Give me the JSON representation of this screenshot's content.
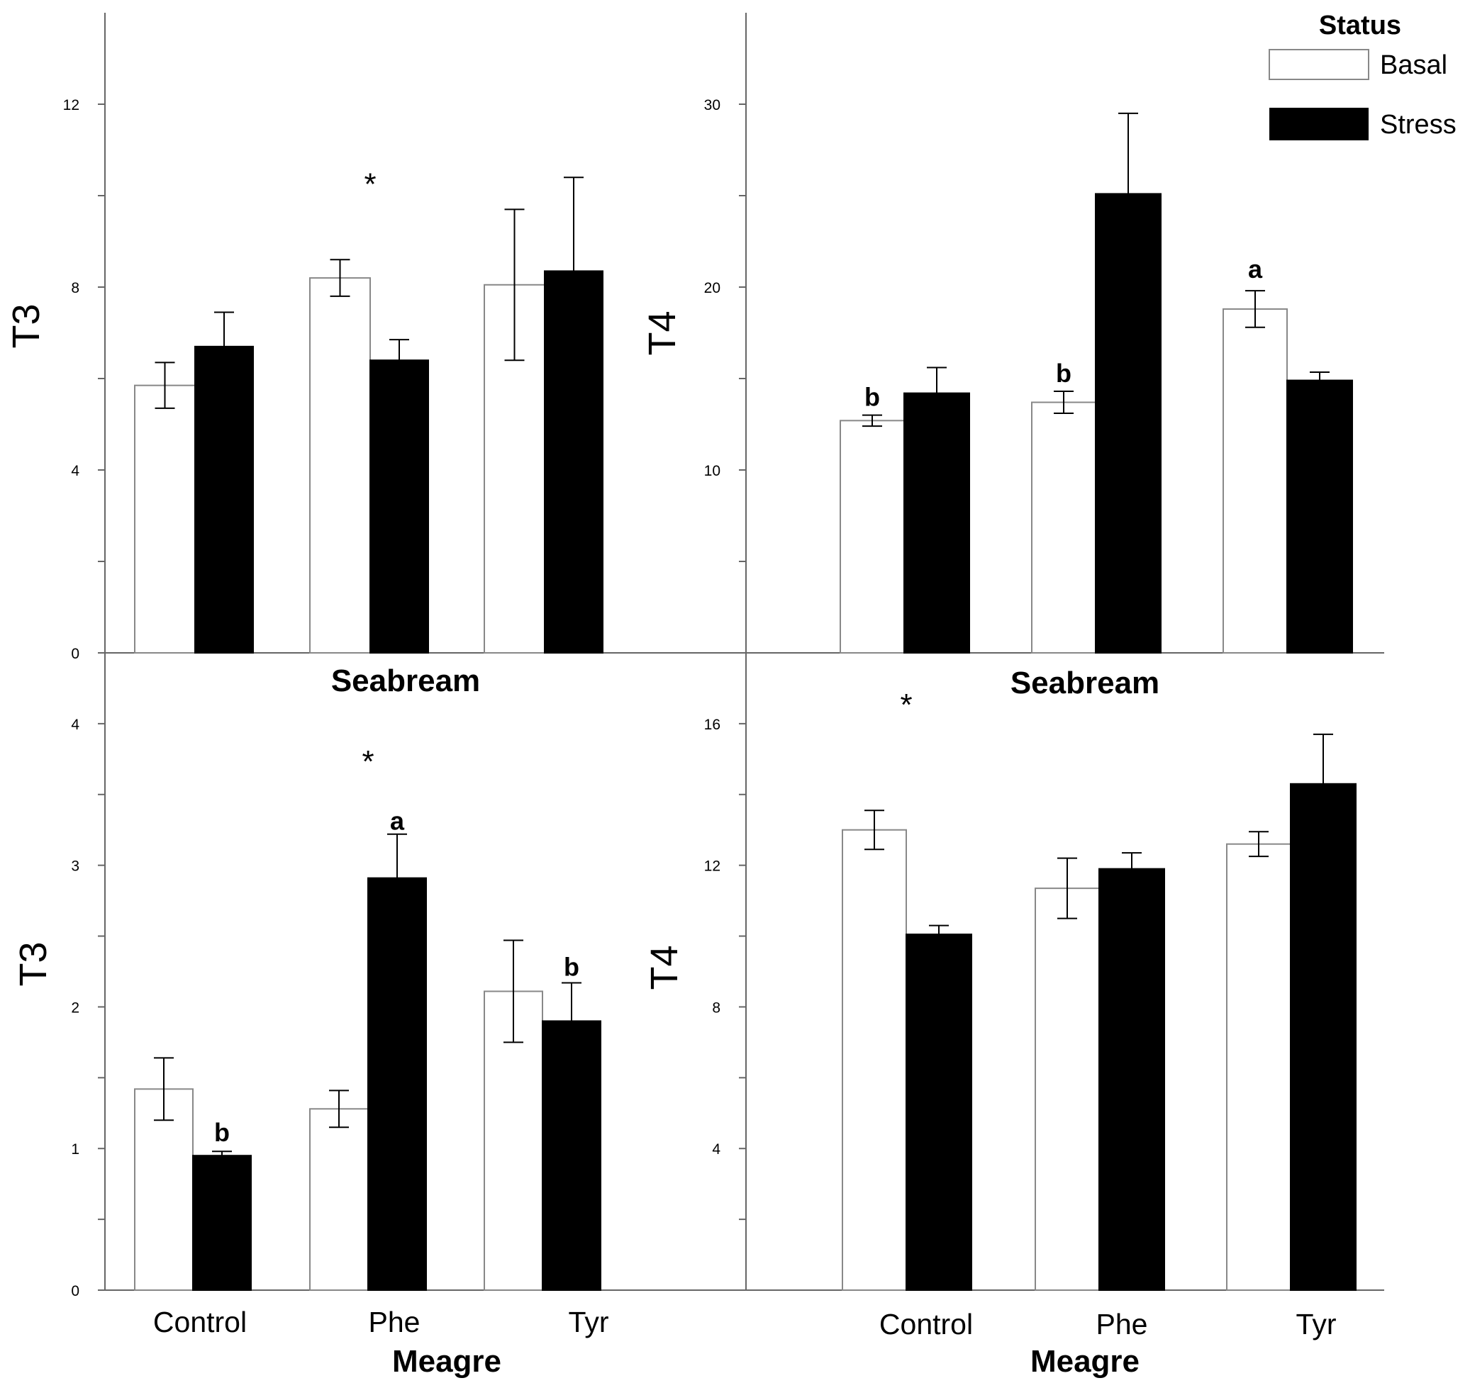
{
  "legend": {
    "title": "Status",
    "entries": [
      {
        "name": "Basal",
        "fill": "#ffffff"
      },
      {
        "name": "Stress",
        "fill": "#000000"
      }
    ]
  },
  "colors": {
    "basal": "#ffffff",
    "stress": "#000000",
    "axis": "#666666",
    "basal_stroke": "#888888"
  },
  "chart_data": [
    {
      "id": "seabream-t3",
      "type": "bar",
      "title": "Seabream",
      "ylabel": "T3",
      "xlabel": "",
      "categories": [
        "Control",
        "Phe",
        "Tyr"
      ],
      "ylim": [
        0,
        14
      ],
      "yticks": [
        0,
        2,
        4,
        6,
        8,
        10,
        12
      ],
      "ytick_labels": [
        "0",
        "",
        "4",
        "",
        "8",
        "",
        "12"
      ],
      "series": [
        {
          "name": "Basal",
          "values": [
            5.85,
            8.2,
            8.05
          ],
          "errors": [
            0.5,
            0.4,
            1.65
          ]
        },
        {
          "name": "Stress",
          "values": [
            6.7,
            6.4,
            8.35
          ],
          "errors": [
            0.75,
            0.45,
            2.05
          ]
        }
      ],
      "annotations": [
        {
          "text": "*",
          "category": 1,
          "y": 10.3,
          "kind": "star"
        }
      ]
    },
    {
      "id": "seabream-t4",
      "type": "bar",
      "title": "Seabream",
      "ylabel": "T4",
      "xlabel": "",
      "categories": [
        "Control",
        "Phe",
        "Tyr"
      ],
      "ylim": [
        0,
        35
      ],
      "yticks": [
        0,
        5,
        10,
        15,
        20,
        25,
        30
      ],
      "ytick_labels": [
        "",
        "",
        "10",
        "",
        "20",
        "",
        "30"
      ],
      "series": [
        {
          "name": "Basal",
          "values": [
            12.7,
            13.7,
            18.8
          ],
          "errors": [
            0.3,
            0.6,
            1.0
          ]
        },
        {
          "name": "Stress",
          "values": [
            14.2,
            25.1,
            14.9
          ],
          "errors": [
            1.4,
            4.4,
            0.45
          ]
        }
      ],
      "annotations": [
        {
          "text": "b",
          "category": 0,
          "y": 13.5,
          "kind": "letter"
        },
        {
          "text": "b",
          "category": 1,
          "y": 14.8,
          "kind": "letter"
        },
        {
          "text": "a",
          "category": 2,
          "y": 20.5,
          "kind": "letter"
        }
      ]
    },
    {
      "id": "meagre-t3",
      "type": "bar",
      "title": "Meagre",
      "ylabel": "T3",
      "xlabel": "",
      "categories": [
        "Control",
        "Phe",
        "Tyr"
      ],
      "ylim": [
        0,
        4.5
      ],
      "yticks": [
        0,
        0.5,
        1,
        1.5,
        2,
        2.5,
        3,
        3.5,
        4
      ],
      "ytick_labels": [
        "0",
        "",
        "1",
        "",
        "2",
        "",
        "3",
        "",
        "4"
      ],
      "series": [
        {
          "name": "Basal",
          "values": [
            1.42,
            1.28,
            2.11
          ],
          "errors": [
            0.22,
            0.13,
            0.36
          ]
        },
        {
          "name": "Stress",
          "values": [
            0.95,
            2.91,
            1.9
          ],
          "errors": [
            0.03,
            0.31,
            0.27
          ]
        }
      ],
      "annotations": [
        {
          "text": "*",
          "category": 1,
          "y": 3.75,
          "kind": "star"
        },
        {
          "text": "a",
          "category": 1,
          "y": 3.25,
          "kind": "letter",
          "side": "stress"
        },
        {
          "text": "b",
          "category": 0,
          "y": 1.05,
          "kind": "letter",
          "side": "stress"
        },
        {
          "text": "b",
          "category": 2,
          "y": 2.22,
          "kind": "letter",
          "side": "stress"
        }
      ]
    },
    {
      "id": "meagre-t4",
      "type": "bar",
      "title": "Meagre",
      "ylabel": "T4",
      "xlabel": "",
      "categories": [
        "Control",
        "Phe",
        "Tyr"
      ],
      "ylim": [
        0,
        18
      ],
      "yticks": [
        0,
        2,
        4,
        6,
        8,
        10,
        12,
        14,
        16,
        18
      ],
      "ytick_labels": [
        "",
        "",
        "4",
        "",
        "8",
        "",
        "12",
        "",
        "16",
        ""
      ],
      "series": [
        {
          "name": "Basal",
          "values": [
            13.0,
            11.35,
            12.6
          ],
          "errors": [
            0.55,
            0.85,
            0.35
          ]
        },
        {
          "name": "Stress",
          "values": [
            10.05,
            11.9,
            14.3
          ],
          "errors": [
            0.25,
            0.45,
            1.4
          ]
        }
      ],
      "annotations": [
        {
          "text": "*",
          "category": 0,
          "y": 16.6,
          "kind": "star"
        }
      ]
    }
  ]
}
